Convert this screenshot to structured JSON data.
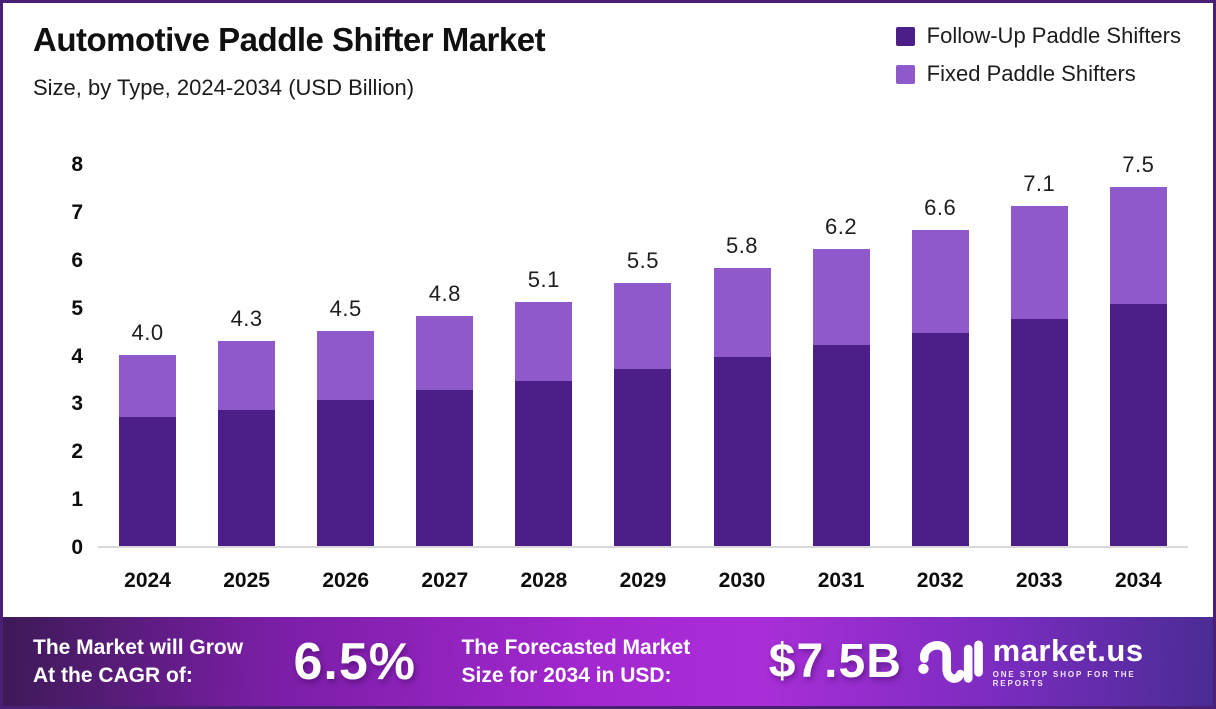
{
  "title": "Automotive Paddle Shifter Market",
  "subtitle": "Size, by Type, 2024-2034 (USD Billion)",
  "legend": [
    {
      "label": "Follow-Up Paddle Shifters",
      "color": "#4b1f87"
    },
    {
      "label": "Fixed Paddle Shifters",
      "color": "#9059cb"
    }
  ],
  "chart_data": {
    "type": "bar",
    "stacked": true,
    "title": "Automotive Paddle Shifter Market Size, by Type, 2024-2034 (USD Billion)",
    "categories": [
      "2024",
      "2025",
      "2026",
      "2027",
      "2028",
      "2029",
      "2030",
      "2031",
      "2032",
      "2033",
      "2034"
    ],
    "series": [
      {
        "name": "Follow-Up Paddle Shifters",
        "color": "#4b1f87",
        "values": [
          2.7,
          2.85,
          3.05,
          3.25,
          3.45,
          3.7,
          3.95,
          4.2,
          4.45,
          4.75,
          5.05
        ]
      },
      {
        "name": "Fixed Paddle Shifters",
        "color": "#9059cb",
        "values": [
          1.3,
          1.45,
          1.45,
          1.55,
          1.65,
          1.8,
          1.85,
          2.0,
          2.15,
          2.35,
          2.45
        ]
      }
    ],
    "totals": [
      "4.0",
      "4.3",
      "4.5",
      "4.8",
      "5.1",
      "5.5",
      "5.8",
      "6.2",
      "6.6",
      "7.1",
      "7.5"
    ],
    "ylim": [
      0,
      8
    ],
    "yticks": [
      0,
      1,
      2,
      3,
      4,
      5,
      6,
      7,
      8
    ],
    "xlabel": "",
    "ylabel": "",
    "grid": false,
    "legend_position": "top-right"
  },
  "banner": {
    "grow_line1": "The Market will Grow",
    "grow_line2": "At the CAGR of:",
    "cagr_value": "6.5%",
    "forecast_line1": "The Forecasted Market",
    "forecast_line2": "Size for 2034 in USD:",
    "forecast_value": "$7.5B",
    "logo_name": "market.us",
    "logo_tagline": "ONE STOP SHOP FOR THE REPORTS"
  },
  "colors": {
    "border": "#4a2077",
    "baseline": "#d9d9d9",
    "banner_gradient_start": "#3d1a57",
    "banner_gradient_mid": "#a227cf",
    "banner_gradient_end": "#4a2c94",
    "dark_series": "#4b1f87",
    "light_series": "#9059cb"
  }
}
